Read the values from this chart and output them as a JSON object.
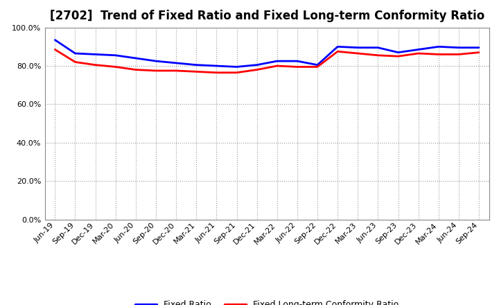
{
  "title": "[2702]  Trend of Fixed Ratio and Fixed Long-term Conformity Ratio",
  "x_labels": [
    "Jun-19",
    "Sep-19",
    "Dec-19",
    "Mar-20",
    "Jun-20",
    "Sep-20",
    "Dec-20",
    "Mar-21",
    "Jun-21",
    "Sep-21",
    "Dec-21",
    "Mar-22",
    "Jun-22",
    "Sep-22",
    "Dec-22",
    "Mar-23",
    "Jun-23",
    "Sep-23",
    "Dec-23",
    "Mar-24",
    "Jun-24",
    "Sep-24"
  ],
  "fixed_ratio": [
    93.5,
    86.5,
    86.0,
    85.5,
    84.0,
    82.5,
    81.5,
    80.5,
    80.0,
    79.5,
    80.5,
    82.5,
    82.5,
    80.5,
    90.0,
    89.5,
    89.5,
    87.0,
    88.5,
    90.0,
    89.5,
    89.5
  ],
  "fixed_lt_conformity": [
    88.5,
    82.0,
    80.5,
    79.5,
    78.0,
    77.5,
    77.5,
    77.0,
    76.5,
    76.5,
    78.0,
    80.0,
    79.5,
    79.5,
    87.5,
    86.5,
    85.5,
    85.0,
    86.5,
    86.0,
    86.0,
    87.0
  ],
  "fixed_ratio_color": "#0000ff",
  "fixed_lt_color": "#ff0000",
  "background_color": "#ffffff",
  "plot_bg_color": "#ffffff",
  "ylim": [
    0,
    100
  ],
  "yticks": [
    0,
    20,
    40,
    60,
    80,
    100
  ],
  "grid_color": "#999999",
  "line_width": 2.0,
  "title_fontsize": 12,
  "tick_fontsize": 8,
  "legend_fontsize": 9
}
